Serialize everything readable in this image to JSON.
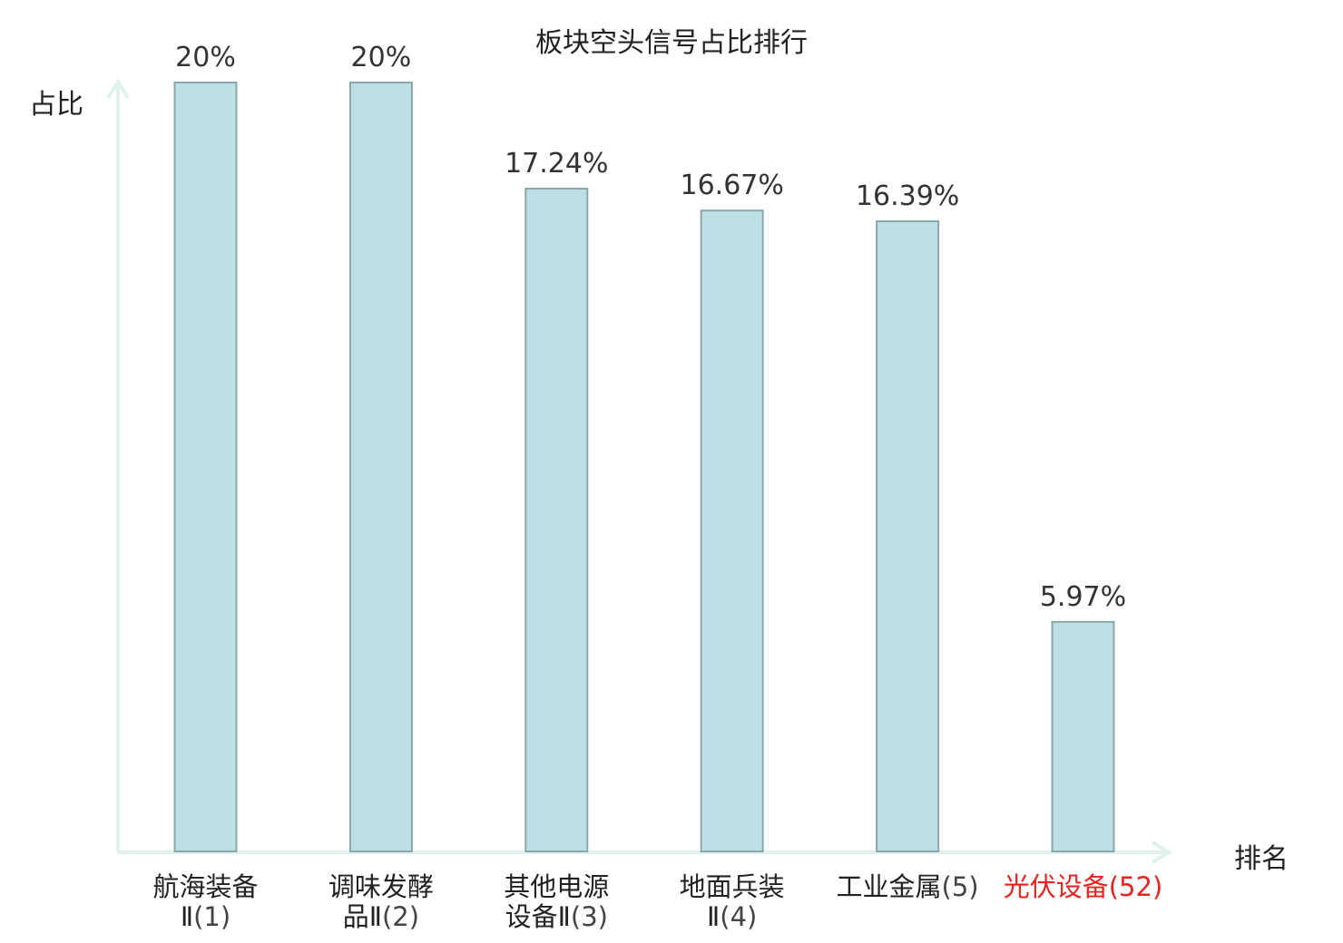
{
  "chart_data": {
    "type": "bar",
    "title": "板块空头信号占比排行",
    "ylabel": "占比",
    "xlabel": "排名",
    "categories": [
      {
        "name": "航海装备",
        "line2": "Ⅱ",
        "rank": "(1)"
      },
      {
        "name": "调味发酵",
        "line2": "品Ⅱ",
        "rank": "(2)"
      },
      {
        "name": "其他电源",
        "line2": "设备Ⅱ",
        "rank": "(3)"
      },
      {
        "name": "地面兵装",
        "line2": "Ⅱ",
        "rank": "(4)"
      },
      {
        "name": "工业金属",
        "line2": "",
        "rank": "(5)"
      },
      {
        "name": "光伏设备",
        "line2": "",
        "rank": "(52)"
      }
    ],
    "values": [
      20,
      20,
      17.24,
      16.67,
      16.39,
      5.97
    ],
    "value_labels": [
      "20%",
      "20%",
      "17.24%",
      "16.67%",
      "16.39%",
      "5.97%"
    ],
    "ylim": [
      0,
      20
    ],
    "highlight_index": 5,
    "colors": {
      "bar_fill": "#bce0e3",
      "bar_stroke": "#8aa8ab",
      "axis": "#dff2ee",
      "highlight_text": "#e8231f"
    }
  }
}
